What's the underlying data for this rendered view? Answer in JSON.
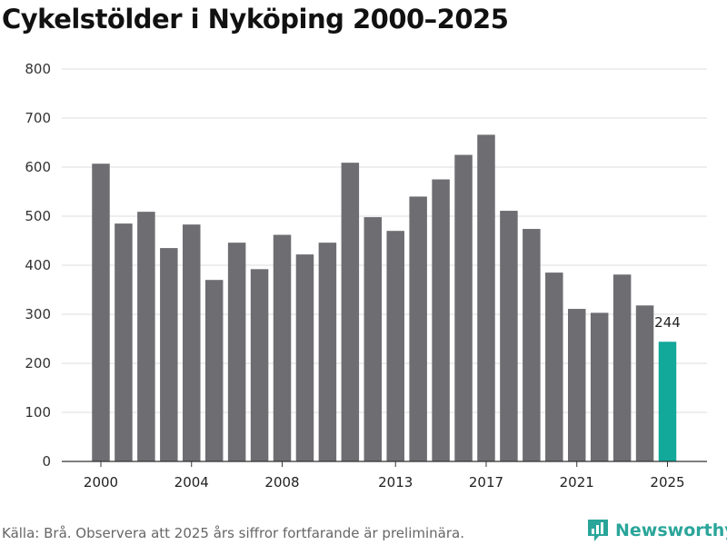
{
  "title": "Cykelstölder i Nyköping 2000–2025",
  "source_note": "Källa: Brå. Observera att 2025 års siffror fortfarande är preliminära.",
  "brand": {
    "name": "Newsworthy",
    "icon": "newsworthy-logo-icon"
  },
  "colors": {
    "bar": "#6e6d72",
    "highlight": "#12a89a",
    "grid": "#dcdcdc",
    "brand": "#2aa59a"
  },
  "chart_data": {
    "type": "bar",
    "title": "Cykelstölder i Nyköping 2000–2025",
    "xlabel": "",
    "ylabel": "",
    "ylim": [
      0,
      800
    ],
    "yticks": [
      0,
      100,
      200,
      300,
      400,
      500,
      600,
      700,
      800
    ],
    "xticks": [
      "2000",
      "2004",
      "2008",
      "2013",
      "2017",
      "2021",
      "2025"
    ],
    "categories": [
      "2000",
      "2001",
      "2002",
      "2003",
      "2004",
      "2005",
      "2006",
      "2007",
      "2008",
      "2009",
      "2010",
      "2011",
      "2012",
      "2013",
      "2014",
      "2015",
      "2016",
      "2017",
      "2018",
      "2019",
      "2020",
      "2021",
      "2022",
      "2023",
      "2024",
      "2025"
    ],
    "values": [
      607,
      485,
      509,
      435,
      483,
      370,
      446,
      392,
      462,
      422,
      446,
      609,
      498,
      470,
      540,
      575,
      625,
      666,
      511,
      474,
      385,
      311,
      303,
      381,
      318,
      244
    ],
    "highlight": {
      "category": "2025",
      "label": "244"
    },
    "grid": true
  }
}
